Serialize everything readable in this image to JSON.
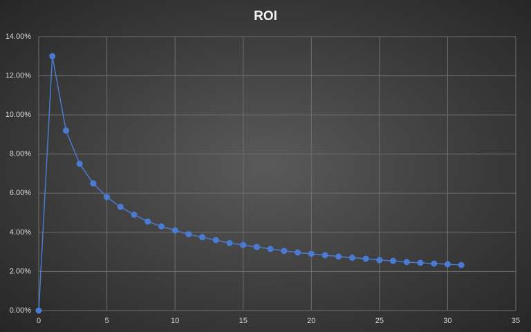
{
  "chart_data": {
    "type": "scatter-line",
    "title": "ROI",
    "x": [
      0,
      1,
      2,
      3,
      4,
      5,
      6,
      7,
      8,
      9,
      10,
      11,
      12,
      13,
      14,
      15,
      16,
      17,
      18,
      19,
      20,
      21,
      22,
      23,
      24,
      25,
      26,
      27,
      28,
      29,
      30,
      31
    ],
    "values": [
      0,
      13.0,
      9.2,
      7.5,
      6.5,
      5.8,
      5.3,
      4.9,
      4.55,
      4.3,
      4.1,
      3.9,
      3.75,
      3.6,
      3.45,
      3.35,
      3.25,
      3.15,
      3.05,
      2.97,
      2.9,
      2.83,
      2.76,
      2.7,
      2.65,
      2.58,
      2.54,
      2.48,
      2.44,
      2.4,
      2.37,
      2.33
    ],
    "color": "#4a7bd0",
    "xlim": [
      0,
      35
    ],
    "xticks": [
      0,
      5,
      10,
      15,
      20,
      25,
      30,
      35
    ],
    "ylim": [
      0,
      14
    ],
    "yticks": [
      {
        "value": 0,
        "label": "0.00%"
      },
      {
        "value": 2,
        "label": "2.00%"
      },
      {
        "value": 4,
        "label": "4.00%"
      },
      {
        "value": 6,
        "label": "6.00%"
      },
      {
        "value": 8,
        "label": "8.00%"
      },
      {
        "value": 10,
        "label": "10.00%"
      },
      {
        "value": 12,
        "label": "12.00%"
      },
      {
        "value": 14,
        "label": "14.00%"
      }
    ],
    "grid": true
  }
}
